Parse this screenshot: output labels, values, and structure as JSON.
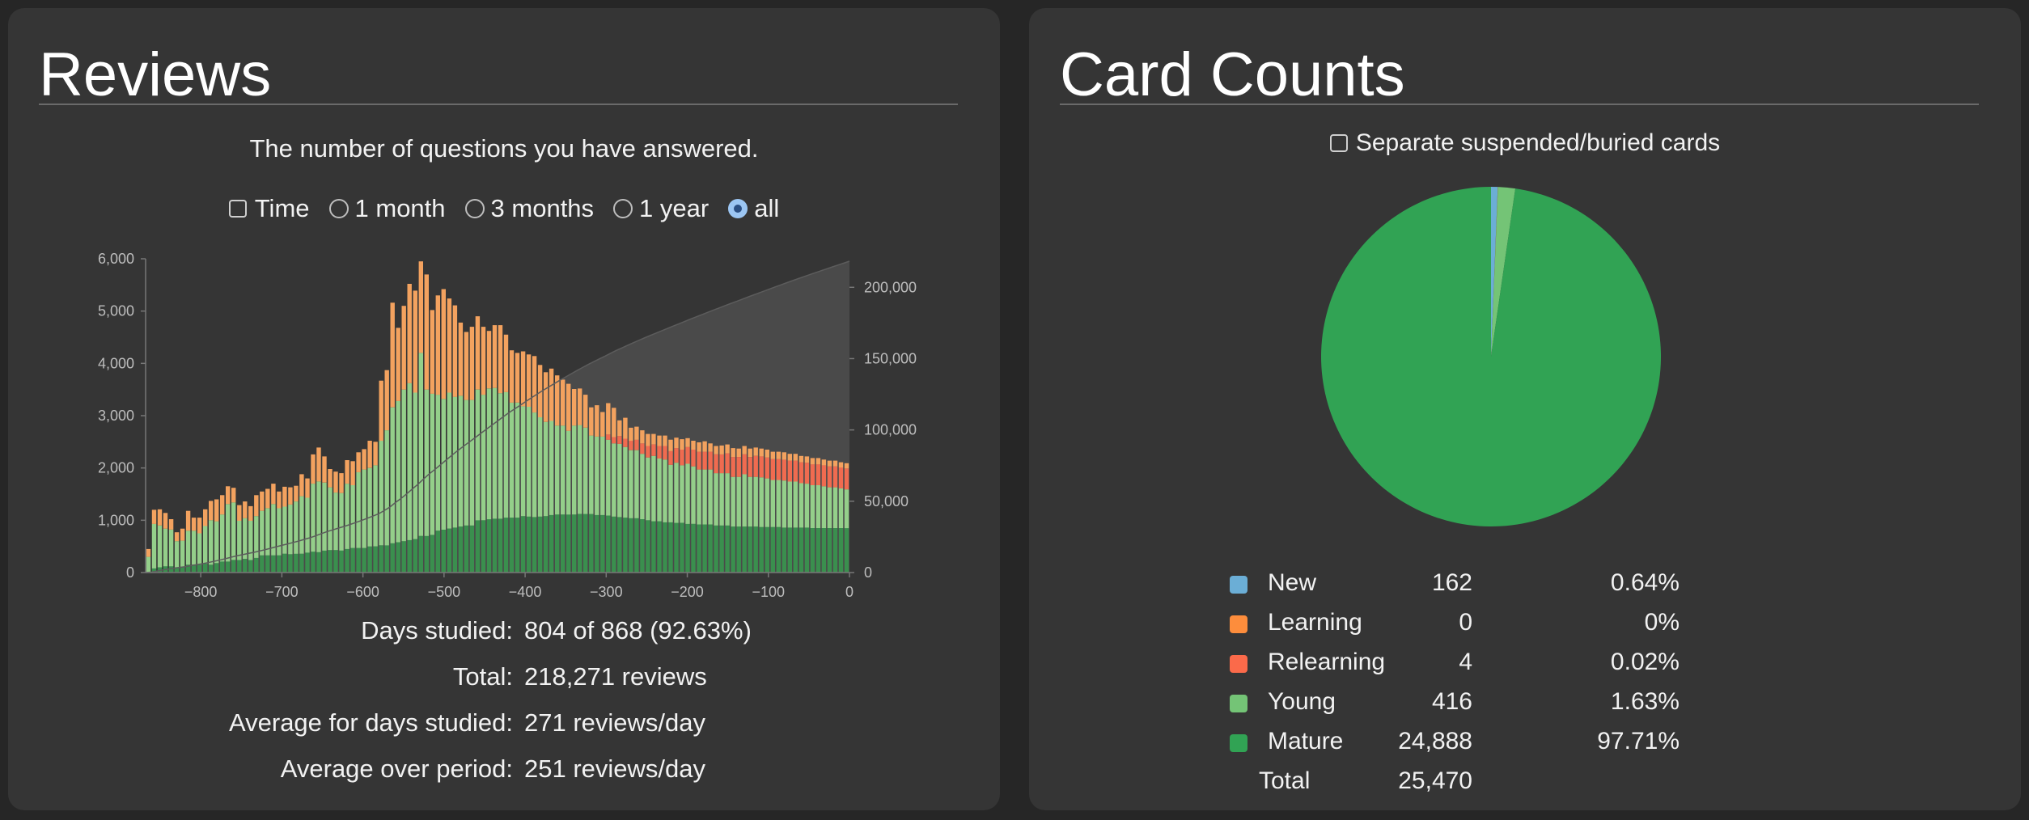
{
  "reviews": {
    "title": "Reviews",
    "subtitle": "The number of questions you have answered.",
    "controls": {
      "time_label": "Time",
      "range_options": [
        "1 month",
        "3 months",
        "1 year",
        "all"
      ],
      "selected": "all"
    },
    "stats": [
      {
        "label": "Days studied:",
        "value": "804 of 868 (92.63%)"
      },
      {
        "label": "Total:",
        "value": "218,271 reviews"
      },
      {
        "label": "Average for days studied:",
        "value": "271 reviews/day"
      },
      {
        "label": "Average over period:",
        "value": "251 reviews/day"
      }
    ]
  },
  "chart_data": {
    "type": "bar",
    "stacked": true,
    "x_ticks": [
      -800,
      -700,
      -600,
      -500,
      -400,
      -300,
      -200,
      -100,
      0
    ],
    "x_range": [
      -868,
      0
    ],
    "y_ticks": [
      "0",
      "1,000",
      "2,000",
      "3,000",
      "4,000",
      "5,000",
      "6,000"
    ],
    "ylim": [
      0,
      6000
    ],
    "y2_ticks": [
      "0",
      "50,000",
      "100,000",
      "150,000",
      "200,000"
    ],
    "y2lim": [
      0,
      220000
    ],
    "grid": false,
    "colors": {
      "mature": "#3a8f4e",
      "young": "#94cf8a",
      "relearning": "#f06b50",
      "learning": "#f3a25f",
      "cumulative": "#4d4d4d"
    },
    "bin_start": [
      -868,
      -861,
      -854,
      -847,
      -840,
      -833,
      -826,
      -819,
      -812,
      -805,
      -798,
      -791,
      -784,
      -777,
      -770,
      -763,
      -756,
      -749,
      -742,
      -735,
      -728,
      -721,
      -714,
      -707,
      -700,
      -693,
      -686,
      -679,
      -672,
      -665,
      -658,
      -651,
      -644,
      -637,
      -630,
      -623,
      -616,
      -609,
      -602,
      -595,
      -588,
      -581,
      -574,
      -567,
      -560,
      -553,
      -546,
      -539,
      -532,
      -525,
      -518,
      -511,
      -504,
      -497,
      -490,
      -483,
      -476,
      -469,
      -462,
      -455,
      -448,
      -441,
      -434,
      -427,
      -420,
      -413,
      -406,
      -399,
      -392,
      -385,
      -378,
      -371,
      -364,
      -357,
      -350,
      -343,
      -336,
      -329,
      -322,
      -315,
      -308,
      -301,
      -294,
      -287,
      -280,
      -273,
      -266,
      -259,
      -252,
      -245,
      -238,
      -231,
      -224,
      -217,
      -210,
      -203,
      -196,
      -189,
      -182,
      -175,
      -168,
      -161,
      -154,
      -147,
      -140,
      -133,
      -126,
      -119,
      -112,
      -105,
      -98,
      -91,
      -84,
      -77,
      -70,
      -63,
      -56,
      -49,
      -42,
      -35,
      -28,
      -21,
      -14,
      -7
    ],
    "series": [
      {
        "name": "Mature",
        "values": [
          0,
          80,
          100,
          120,
          120,
          100,
          110,
          150,
          150,
          150,
          170,
          150,
          180,
          210,
          210,
          240,
          240,
          260,
          240,
          280,
          330,
          330,
          330,
          330,
          360,
          350,
          360,
          360,
          380,
          400,
          390,
          420,
          430,
          430,
          420,
          450,
          470,
          470,
          470,
          500,
          500,
          520,
          520,
          560,
          580,
          600,
          620,
          640,
          700,
          700,
          720,
          800,
          820,
          840,
          860,
          880,
          900,
          900,
          1000,
          1000,
          1020,
          1030,
          1030,
          1050,
          1050,
          1050,
          1080,
          1070,
          1060,
          1070,
          1080,
          1100,
          1110,
          1110,
          1110,
          1110,
          1120,
          1120,
          1120,
          1100,
          1100,
          1090,
          1070,
          1060,
          1050,
          1040,
          1040,
          1020,
          1000,
          980,
          980,
          960,
          960,
          950,
          950,
          930,
          930,
          920,
          920,
          920,
          900,
          900,
          900,
          880,
          880,
          880,
          880,
          880,
          870,
          870,
          870,
          870,
          860,
          860,
          860,
          860,
          860,
          850,
          850,
          850,
          850,
          850,
          850,
          850
        ]
      },
      {
        "name": "Young",
        "values": [
          300,
          850,
          800,
          720,
          700,
          500,
          500,
          650,
          650,
          600,
          720,
          850,
          800,
          900,
          1100,
          1100,
          750,
          780,
          750,
          800,
          850,
          900,
          980,
          900,
          900,
          950,
          1000,
          1100,
          1050,
          1300,
          1350,
          1300,
          1200,
          1100,
          1100,
          1250,
          1200,
          1450,
          1500,
          1500,
          1550,
          2000,
          2200,
          2600,
          2700,
          2900,
          3000,
          2800,
          3500,
          2800,
          2700,
          2600,
          2500,
          2600,
          2500,
          2500,
          2400,
          2400,
          2500,
          2400,
          2500,
          2500,
          2400,
          2400,
          2200,
          2200,
          2100,
          2100,
          2000,
          1900,
          1800,
          1800,
          1700,
          1700,
          1600,
          1700,
          1700,
          1650,
          1500,
          1500,
          1500,
          1450,
          1400,
          1400,
          1350,
          1300,
          1300,
          1250,
          1200,
          1250,
          1200,
          1200,
          1100,
          1150,
          1100,
          1150,
          1100,
          1050,
          1050,
          1050,
          1000,
          1000,
          1000,
          950,
          950,
          1000,
          950,
          950,
          950,
          930,
          900,
          900,
          900,
          880,
          880,
          850,
          840,
          820,
          820,
          800,
          780,
          780,
          760,
          740
        ]
      },
      {
        "name": "Relearning",
        "values": [
          0,
          0,
          0,
          0,
          0,
          0,
          0,
          0,
          0,
          0,
          0,
          0,
          0,
          0,
          0,
          0,
          0,
          0,
          0,
          0,
          0,
          0,
          0,
          0,
          0,
          0,
          0,
          0,
          0,
          0,
          0,
          0,
          0,
          0,
          0,
          0,
          0,
          0,
          0,
          0,
          0,
          0,
          0,
          0,
          0,
          0,
          0,
          0,
          0,
          0,
          0,
          0,
          0,
          0,
          0,
          0,
          0,
          0,
          0,
          0,
          0,
          0,
          0,
          0,
          0,
          0,
          0,
          0,
          0,
          0,
          0,
          0,
          0,
          0,
          0,
          0,
          0,
          0,
          0,
          0,
          0,
          100,
          120,
          150,
          160,
          180,
          200,
          200,
          220,
          220,
          240,
          260,
          260,
          280,
          300,
          320,
          320,
          340,
          340,
          340,
          360,
          360,
          380,
          380,
          380,
          380,
          380,
          400,
          400,
          400,
          400,
          400,
          400,
          400,
          400,
          400,
          400,
          400,
          400,
          400,
          400,
          400,
          400,
          400
        ]
      },
      {
        "name": "Learning",
        "values": [
          150,
          270,
          310,
          300,
          200,
          170,
          230,
          380,
          250,
          300,
          320,
          370,
          420,
          370,
          340,
          280,
          300,
          320,
          280,
          400,
          370,
          370,
          390,
          320,
          380,
          330,
          300,
          420,
          370,
          560,
          650,
          500,
          350,
          400,
          380,
          450,
          460,
          380,
          390,
          520,
          450,
          1150,
          1150,
          2000,
          1400,
          1600,
          1900,
          1950,
          1750,
          2200,
          1600,
          1900,
          2100,
          1800,
          1750,
          1400,
          1300,
          1400,
          1400,
          1300,
          1100,
          1200,
          1300,
          1100,
          1000,
          950,
          1050,
          1000,
          1080,
          1000,
          950,
          1000,
          960,
          880,
          900,
          700,
          700,
          630,
          540,
          600,
          470,
          600,
          560,
          300,
          400,
          250,
          250,
          250,
          230,
          200,
          200,
          200,
          220,
          200,
          200,
          170,
          170,
          180,
          200,
          160,
          160,
          170,
          170,
          170,
          160,
          160,
          160,
          160,
          150,
          150,
          140,
          140,
          140,
          130,
          130,
          120,
          120,
          120,
          120,
          110,
          110,
          110,
          100,
          100
        ]
      }
    ],
    "cumulative_total": 218271
  },
  "card_counts": {
    "title": "Card Counts",
    "separate_label": "Separate suspended/buried cards",
    "rows": [
      {
        "label": "New",
        "count": "162",
        "pct": "0.64%",
        "color": "#6baed6",
        "value": 162
      },
      {
        "label": "Learning",
        "count": "0",
        "pct": "0%",
        "color": "#fd8d3c",
        "value": 0
      },
      {
        "label": "Relearning",
        "count": "4",
        "pct": "0.02%",
        "color": "#fb6a4a",
        "value": 4
      },
      {
        "label": "Young",
        "count": "416",
        "pct": "1.63%",
        "color": "#74c476",
        "value": 416
      },
      {
        "label": "Mature",
        "count": "24,888",
        "pct": "97.71%",
        "color": "#31a354",
        "value": 24888
      }
    ],
    "total_label": "Total",
    "total_count": "25,470"
  }
}
